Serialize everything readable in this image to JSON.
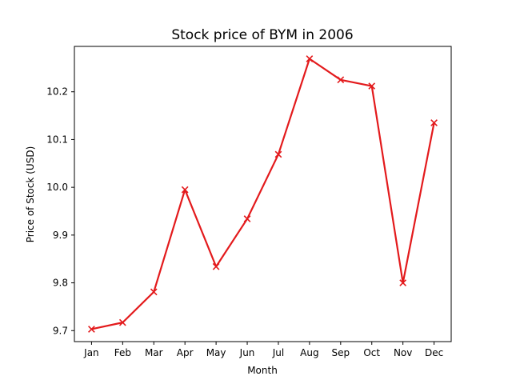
{
  "chart_data": {
    "type": "line",
    "title": "Stock price of BYM in 2006",
    "xlabel": "Month",
    "ylabel": "Price of Stock (USD)",
    "categories": [
      "Jan",
      "Feb",
      "Mar",
      "Apr",
      "May",
      "Jun",
      "Jul",
      "Aug",
      "Sep",
      "Oct",
      "Nov",
      "Dec"
    ],
    "series": [
      {
        "values": [
          9.703,
          9.717,
          9.781,
          9.995,
          9.834,
          9.934,
          10.069,
          10.269,
          10.225,
          10.212,
          9.8,
          10.135
        ],
        "color": "#e31a1c",
        "marker": "x"
      }
    ],
    "ylim": [
      9.677,
      10.295
    ],
    "yticks": [
      9.7,
      9.8,
      9.9,
      10.0,
      10.1,
      10.2
    ],
    "ytick_labels": [
      "9.7",
      "9.8",
      "9.9",
      "10.0",
      "10.1",
      "10.2"
    ],
    "grid": false,
    "legend": "none"
  }
}
